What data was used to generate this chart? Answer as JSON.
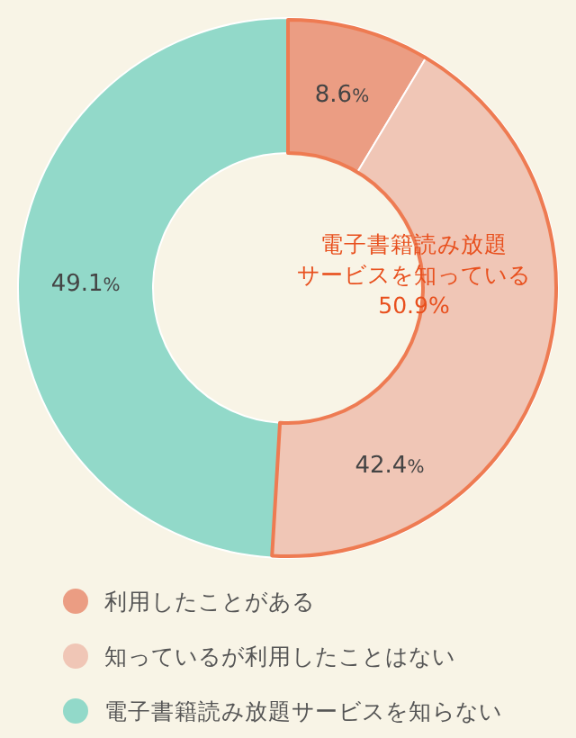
{
  "chart_data": {
    "type": "donut",
    "categories": [
      "利用したことがある",
      "知っているが利用したことはない",
      "電子書籍読み放題サービスを知らない"
    ],
    "values": [
      8.6,
      42.4,
      49.1
    ],
    "colors": [
      "#eb9d83",
      "#f0c6b6",
      "#92d9c9"
    ],
    "value_labels": [
      "8.6%",
      "42.4%",
      "49.1%"
    ],
    "annotations": [
      "電子書籍読み放題",
      "サービスを知っている",
      "50.9%"
    ],
    "legend": "bottom"
  }
}
